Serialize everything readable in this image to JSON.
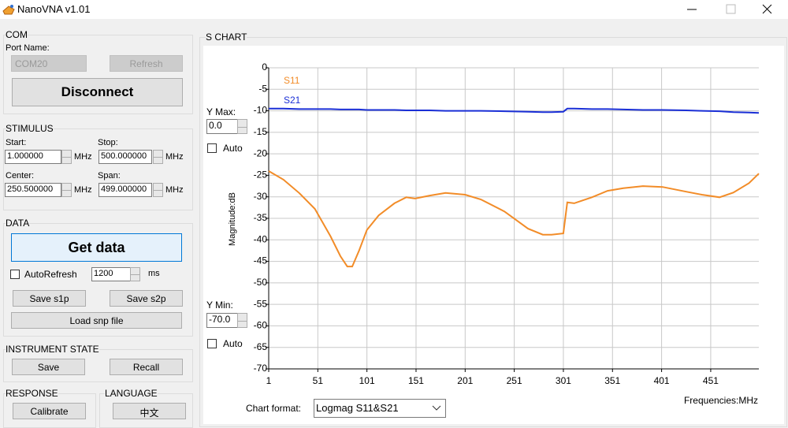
{
  "window": {
    "title": "NanoVNA v1.01"
  },
  "com": {
    "title": "COM",
    "port_label": "Port Name:",
    "port": "COM20",
    "refresh": "Refresh",
    "disconnect": "Disconnect"
  },
  "stimulus": {
    "title": "STIMULUS",
    "start_label": "Start:",
    "start": "1.000000",
    "stop_label": "Stop:",
    "stop": "500.000000",
    "center_label": "Center:",
    "center": "250.500000",
    "span_label": "Span:",
    "span": "499.000000",
    "unit": "MHz"
  },
  "data_group": {
    "title": "DATA",
    "get_data": "Get data",
    "autorefresh": "AutoRefresh",
    "interval": "1200",
    "interval_unit": "ms",
    "save_s1p": "Save s1p",
    "save_s2p": "Save s2p",
    "load": "Load snp file"
  },
  "instrument": {
    "title": "INSTRUMENT STATE",
    "save": "Save",
    "recall": "Recall"
  },
  "response": {
    "title": "RESPONSE",
    "calibrate": "Calibrate"
  },
  "language": {
    "title": "LANGUAGE",
    "button": "中文"
  },
  "chart_panel": {
    "title": "S CHART",
    "ymax_label": "Y Max:",
    "ymax": "0.0",
    "auto": "Auto",
    "ymin_label": "Y Min:",
    "ymin": "-70.0",
    "format_label": "Chart format:",
    "format": "Logmag S11&S21"
  },
  "chart_data": {
    "type": "line",
    "y_label": "Magnitude:dB",
    "x_label": "Frequencies:MHz",
    "x": [
      1,
      16,
      32,
      48,
      64,
      74,
      81,
      86,
      93,
      101,
      113,
      129,
      141,
      150,
      165,
      181,
      201,
      217,
      241,
      265,
      280,
      289,
      301,
      305,
      312,
      330,
      346,
      362,
      382,
      402,
      426,
      442,
      460,
      474,
      490,
      500
    ],
    "series": [
      {
        "name": "S11",
        "color": "#f28c28",
        "values": [
          -24,
          -26,
          -29.1,
          -32.8,
          -39.2,
          -43.8,
          -46.2,
          -46.2,
          -42.5,
          -37.7,
          -34.3,
          -31.5,
          -30.1,
          -30.4,
          -29.7,
          -29.1,
          -29.5,
          -30.6,
          -33.4,
          -37.4,
          -38.8,
          -38.8,
          -38.5,
          -31.3,
          -31.5,
          -30.1,
          -28.6,
          -28,
          -27.5,
          -27.7,
          -28.8,
          -29.5,
          -30.1,
          -29,
          -26.8,
          -24.6
        ]
      },
      {
        "name": "S21",
        "color": "#1a2fd6",
        "values": [
          -9.5,
          -9.5,
          -9.6,
          -9.6,
          -9.6,
          -9.7,
          -9.7,
          -9.7,
          -9.7,
          -9.8,
          -9.8,
          -9.8,
          -9.9,
          -9.9,
          -9.9,
          -10,
          -10,
          -10,
          -10.1,
          -10.2,
          -10.3,
          -10.3,
          -10.2,
          -9.5,
          -9.5,
          -9.6,
          -9.6,
          -9.7,
          -9.8,
          -9.8,
          -9.9,
          -10,
          -10.1,
          -10.3,
          -10.4,
          -10.5
        ]
      }
    ],
    "xlim": [
      1,
      500
    ],
    "ylim": [
      -70,
      0
    ],
    "xticks": [
      1,
      51,
      101,
      151,
      201,
      251,
      301,
      351,
      401,
      451
    ],
    "yticks": [
      0,
      -5,
      -10,
      -15,
      -20,
      -25,
      -30,
      -35,
      -40,
      -45,
      -50,
      -55,
      -60,
      -65,
      -70
    ],
    "grid": true
  }
}
